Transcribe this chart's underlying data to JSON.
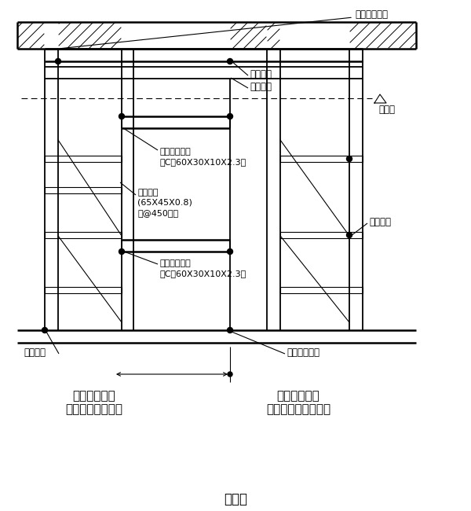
{
  "bg_color": "#ffffff",
  "title": "軸　組",
  "label_runner1": "ランナー",
  "label_runner2": "ランナー",
  "label_ceiling": "天井面",
  "label_hardware_top": "取付け用金物",
  "label_hardware_bottom": "取付け用金物",
  "label_stud_line1": "スタッド",
  "label_stud_line2": "(65X45X0.8)",
  "label_stud_line3": "－@450程度",
  "label_opening1_line1": "開口部補強材",
  "label_opening1_line2": "（C－60X30X10X2.3）",
  "label_opening2_line1": "開口部補強材",
  "label_opening2_line2": "（C－60X30X10X2.3）",
  "label_brace": "振れ止め",
  "label_runner_bottom": "ランナー",
  "label_same_line1": "隣り合う室の",
  "label_same_line2": "天井高が同じ場合",
  "label_diff_line1": "隣り合う室の",
  "label_diff_line2": "天井高が異なる場合"
}
